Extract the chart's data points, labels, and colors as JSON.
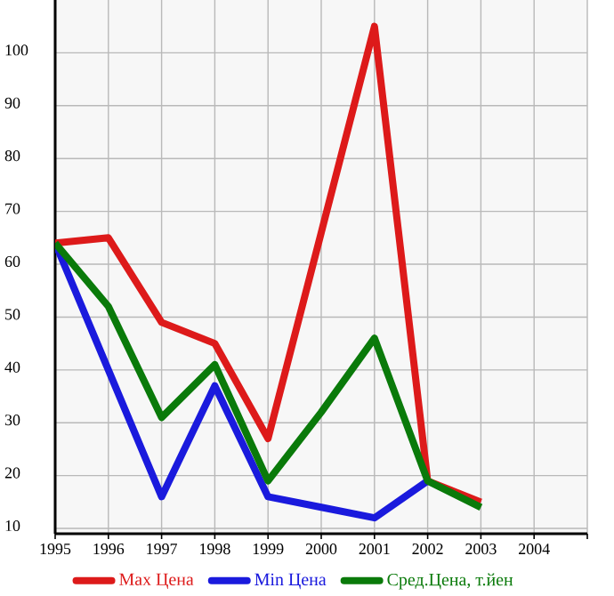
{
  "chart_data": {
    "type": "line",
    "x": [
      1995,
      1996,
      1997,
      1998,
      1999,
      2000,
      2001,
      2002,
      2003
    ],
    "series": [
      {
        "name": "Max Цена",
        "color": "#dd1a1a",
        "values": [
          64,
          65,
          49,
          45,
          27,
          66,
          105,
          19,
          15
        ]
      },
      {
        "name": "Min Цена",
        "color": "#1a1add",
        "values": [
          64,
          40,
          16,
          37,
          16,
          14,
          12,
          19,
          null
        ]
      },
      {
        "name": "Сред.Цена, т.йен",
        "color": "#0a7a0a",
        "values": [
          64,
          52,
          31,
          41,
          19,
          32,
          46,
          19,
          14
        ]
      }
    ],
    "xlim": [
      1995,
      2005
    ],
    "xticks": [
      1995,
      1996,
      1997,
      1998,
      1999,
      2000,
      2001,
      2002,
      2003,
      2004,
      {
        "value": 2005,
        "label": null
      }
    ],
    "ylim": [
      9,
      110
    ],
    "yticks": [
      10,
      20,
      30,
      40,
      50,
      60,
      70,
      80,
      90,
      100
    ],
    "grid": true,
    "legend": "bottom",
    "marker": "none",
    "line_style": "solid"
  }
}
